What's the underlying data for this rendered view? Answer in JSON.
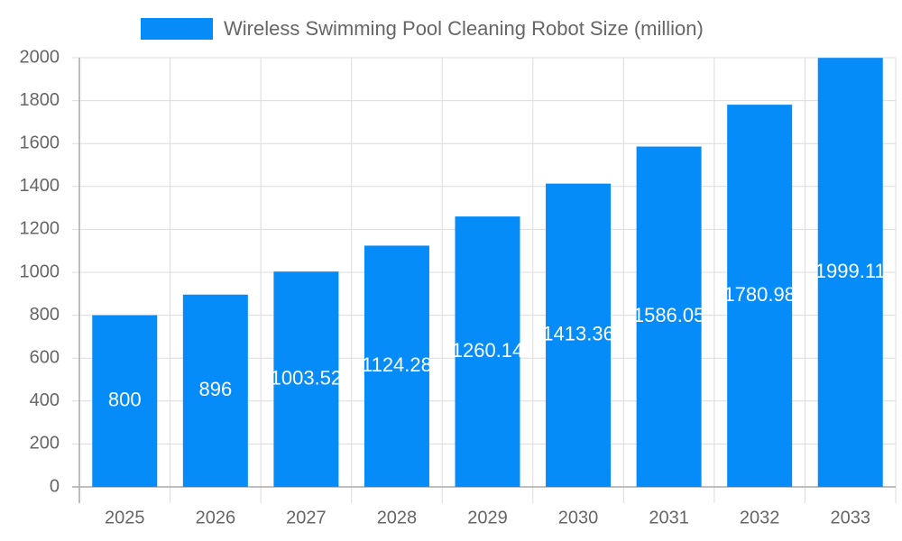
{
  "chart_data": {
    "type": "bar",
    "categories": [
      "2025",
      "2026",
      "2027",
      "2028",
      "2029",
      "2030",
      "2031",
      "2032",
      "2033"
    ],
    "series": [
      {
        "name": "Wireless Swimming Pool Cleaning Robot Size (million)",
        "color": "#058cf9",
        "values": [
          800,
          896,
          1003.52,
          1124.28,
          1260.14,
          1413.36,
          1586.05,
          1780.98,
          1999.11
        ]
      }
    ],
    "ylim": [
      0,
      2000
    ],
    "yticks": [
      0,
      200,
      400,
      600,
      800,
      1000,
      1200,
      1400,
      1600,
      1800,
      2000
    ],
    "grid": true,
    "legend": "top",
    "data_labels": true
  }
}
